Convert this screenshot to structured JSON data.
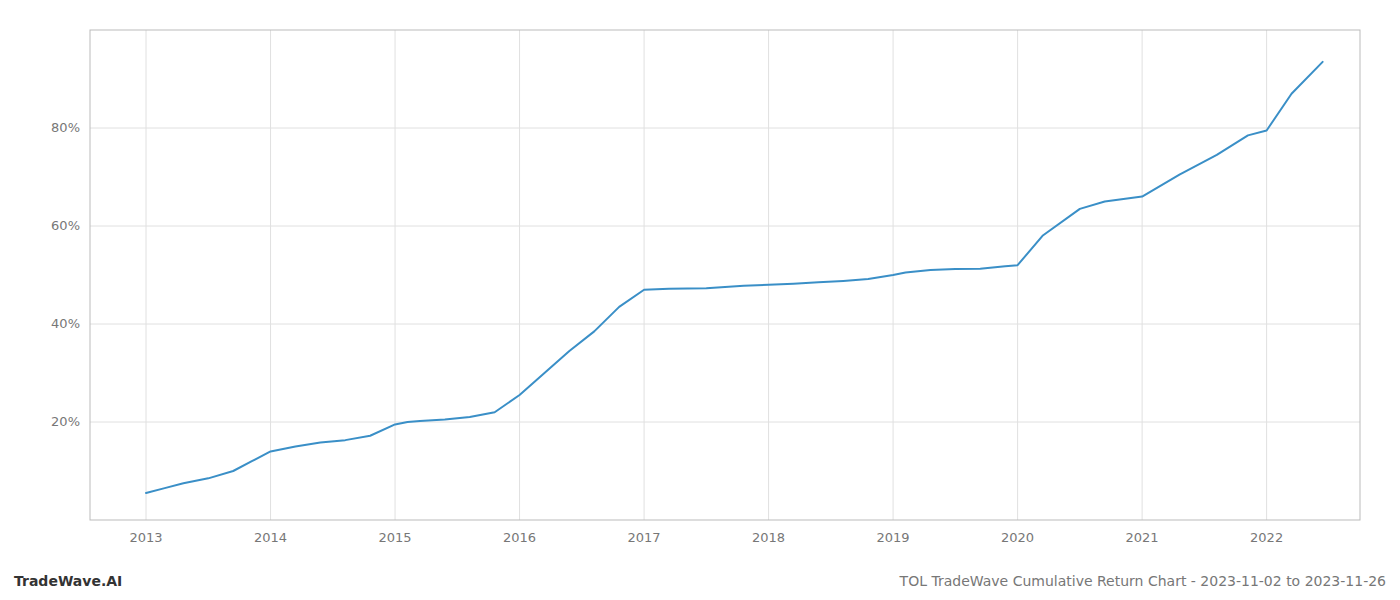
{
  "chart_data": {
    "type": "line",
    "title": "TOL TradeWave Cumulative Return Chart - 2023-11-02 to 2023-11-26",
    "annotations": [
      "TradeWave.AI"
    ],
    "x": [
      2013.0,
      2013.15,
      2013.3,
      2013.5,
      2013.7,
      2013.85,
      2014.0,
      2014.2,
      2014.4,
      2014.6,
      2014.8,
      2015.0,
      2015.1,
      2015.2,
      2015.4,
      2015.6,
      2015.8,
      2016.0,
      2016.2,
      2016.4,
      2016.6,
      2016.8,
      2017.0,
      2017.2,
      2017.5,
      2017.8,
      2018.0,
      2018.2,
      2018.4,
      2018.6,
      2018.8,
      2019.0,
      2019.1,
      2019.3,
      2019.5,
      2019.7,
      2019.9,
      2020.0,
      2020.2,
      2020.5,
      2020.7,
      2021.0,
      2021.3,
      2021.6,
      2021.85,
      2022.0,
      2022.2,
      2022.45
    ],
    "values": [
      5.5,
      6.5,
      7.5,
      8.5,
      10.0,
      12.0,
      14.0,
      15.0,
      15.8,
      16.3,
      17.2,
      19.5,
      20.0,
      20.2,
      20.5,
      21.0,
      22.0,
      25.5,
      30.0,
      34.5,
      38.5,
      43.5,
      47.0,
      47.2,
      47.3,
      47.8,
      48.0,
      48.2,
      48.5,
      48.8,
      49.2,
      50.0,
      50.5,
      51.0,
      51.2,
      51.3,
      51.8,
      52.0,
      58.0,
      63.5,
      65.0,
      66.0,
      70.5,
      74.5,
      78.5,
      79.5,
      87.0,
      93.5
    ],
    "color": "#3a8fc7",
    "xlim": [
      2012.55,
      2022.75
    ],
    "ylim": [
      0,
      100
    ],
    "xticks": [
      2013,
      2014,
      2015,
      2016,
      2017,
      2018,
      2019,
      2020,
      2021,
      2022
    ],
    "yticks": [
      {
        "value": 20,
        "label": "20%"
      },
      {
        "value": 40,
        "label": "40%"
      },
      {
        "value": 60,
        "label": "60%"
      },
      {
        "value": 80,
        "label": "80%"
      }
    ],
    "grid": true
  }
}
